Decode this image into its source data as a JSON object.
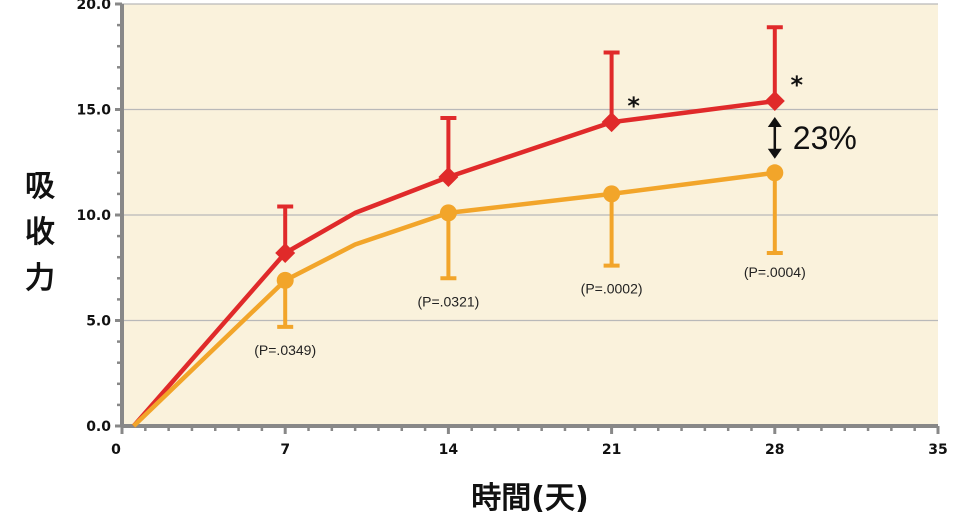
{
  "chart_data": {
    "type": "line",
    "xlabel": "時間(天)",
    "ylabel": "吸收力",
    "xlim": [
      0,
      35
    ],
    "ylim": [
      0,
      20
    ],
    "x_ticks": [
      "0",
      "7",
      "14",
      "21",
      "28",
      "35"
    ],
    "y_ticks": [
      "0.0",
      "5.0",
      "10.0",
      "15.0",
      "20.0"
    ],
    "grid": "horizontal",
    "background_color": "#faf2dc",
    "series": [
      {
        "color": "#e02a2a",
        "marker": "diamond",
        "points": [
          {
            "x": 0.5,
            "y": 0
          },
          {
            "x": 7,
            "y": 8.2
          },
          {
            "x": 10,
            "y": 10.1
          },
          {
            "x": 14,
            "y": 11.8
          },
          {
            "x": 21,
            "y": 14.4
          },
          {
            "x": 28,
            "y": 15.4
          }
        ],
        "marked_x": [
          7,
          14,
          21,
          28
        ],
        "error_upper": [
          {
            "x": 7,
            "y": 10.4
          },
          {
            "x": 14,
            "y": 14.6
          },
          {
            "x": 21,
            "y": 17.7
          },
          {
            "x": 28,
            "y": 18.9
          }
        ]
      },
      {
        "color": "#f2a52a",
        "marker": "circle",
        "points": [
          {
            "x": 0.5,
            "y": 0
          },
          {
            "x": 7,
            "y": 6.9
          },
          {
            "x": 10,
            "y": 8.6
          },
          {
            "x": 14,
            "y": 10.1
          },
          {
            "x": 21,
            "y": 11.0
          },
          {
            "x": 28,
            "y": 12.0
          }
        ],
        "marked_x": [
          7,
          14,
          21,
          28
        ],
        "error_lower": [
          {
            "x": 7,
            "y": 4.7
          },
          {
            "x": 14,
            "y": 7.0
          },
          {
            "x": 21,
            "y": 7.6
          },
          {
            "x": 28,
            "y": 8.2
          }
        ]
      }
    ],
    "annotations": {
      "p_values": [
        {
          "x": 7,
          "text": "(P=.0349)"
        },
        {
          "x": 14,
          "text": "(P=.0321)"
        },
        {
          "x": 21,
          "text": "(P=.0002)"
        },
        {
          "x": 28,
          "text": "(P=.0004)"
        }
      ],
      "significance": [
        {
          "x": 21,
          "text": "*"
        },
        {
          "x": 28,
          "text": "*"
        }
      ],
      "difference": {
        "x": 28,
        "text": "23%"
      }
    }
  }
}
